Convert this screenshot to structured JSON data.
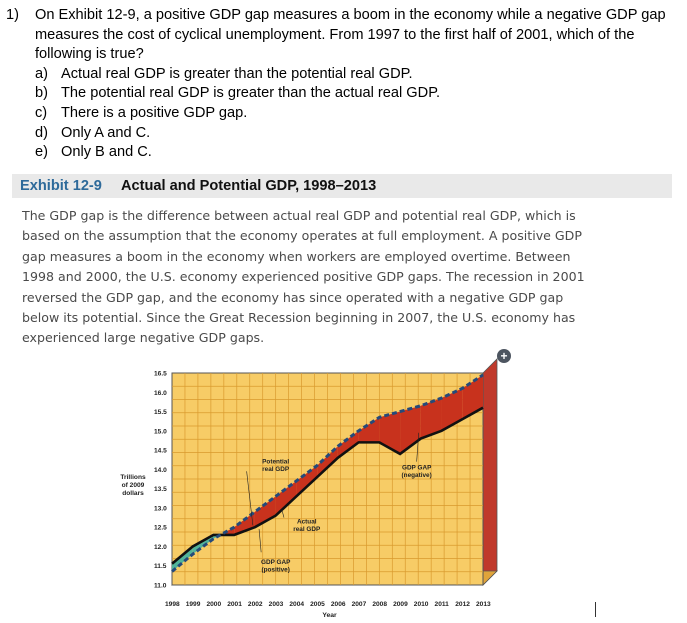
{
  "question": {
    "number": "1)",
    "text": "On Exhibit 12-9, a positive GDP gap measures a boom in the economy while a negative GDP gap measures the cost of cyclical unemployment. From 1997 to the first half of 2001, which of the following is true?",
    "options": [
      {
        "letter": "a)",
        "text": "Actual real GDP is greater than the potential real GDP."
      },
      {
        "letter": "b)",
        "text": "The potential real GDP is greater than the actual real GDP."
      },
      {
        "letter": "c)",
        "text": "There is a positive GDP gap."
      },
      {
        "letter": "d)",
        "text": "Only A and C."
      },
      {
        "letter": "e)",
        "text": "Only B and C."
      }
    ]
  },
  "exhibit": {
    "number": "Exhibit 12-9",
    "title": "Actual and Potential GDP, 1998–2013",
    "caption": "The GDP gap is the difference between actual real GDP and potential real GDP, which is based on the assumption that the economy operates at full employment. A positive GDP gap measures a boom in the economy when workers are employed overtime. Between 1998 and 2000, the U.S. economy experienced positive GDP gaps. The recession in 2001 reversed the GDP gap, and the economy has since operated with a negative GDP gap below its potential. Since the Great Recession beginning in 2007, the U.S. economy has experienced large negative GDP gaps."
  },
  "icons": {
    "expand": "plus-circle-icon"
  },
  "expand_symbol": "+",
  "colors": {
    "plot_bg": "#f7cc66",
    "grid": "#d99a2e",
    "negative_gap": "#c8321d",
    "positive_gap": "#52b49a",
    "potential_line": "#254a7a",
    "actual_line": "#111111",
    "side_face": "#c0392b"
  },
  "chart_data": {
    "type": "line",
    "xlabel": "Year",
    "ylabel_lines": [
      "Trillions",
      "of 2009",
      "dollars"
    ],
    "ylim": [
      11.0,
      16.5
    ],
    "xlim": [
      1998,
      2013
    ],
    "yticks": [
      "11.0",
      "11.5",
      "12.0",
      "12.5",
      "13.0",
      "13.5",
      "14.0",
      "14.5",
      "15.0",
      "15.5",
      "16.0",
      "16.5"
    ],
    "xticks": [
      "1998",
      "1999",
      "2000",
      "2001",
      "2002",
      "2003",
      "2004",
      "2005",
      "2006",
      "2007",
      "2008",
      "2009",
      "2010",
      "2011",
      "2012",
      "2013"
    ],
    "series": [
      {
        "name": "Potential real GDP",
        "x": [
          1998,
          1999,
          2000,
          2001,
          2002,
          2003,
          2004,
          2005,
          2006,
          2007,
          2008,
          2009,
          2010,
          2011,
          2012,
          2013
        ],
        "values": [
          11.35,
          11.8,
          12.2,
          12.5,
          12.9,
          13.3,
          13.7,
          14.1,
          14.6,
          15.0,
          15.35,
          15.5,
          15.65,
          15.85,
          16.1,
          16.45
        ]
      },
      {
        "name": "Actual real GDP",
        "x": [
          1998,
          1999,
          2000,
          2001,
          2002,
          2003,
          2004,
          2005,
          2006,
          2007,
          2008,
          2009,
          2010,
          2011,
          2012,
          2013
        ],
        "values": [
          11.55,
          12.0,
          12.3,
          12.3,
          12.5,
          12.8,
          13.3,
          13.8,
          14.3,
          14.7,
          14.7,
          14.4,
          14.8,
          15.0,
          15.3,
          15.6
        ]
      }
    ],
    "annotations": [
      {
        "text": [
          "Potential",
          "real GDP"
        ],
        "x": 2003,
        "y": 14.15
      },
      {
        "text": [
          "Actual",
          "real GDP"
        ],
        "x": 2004.5,
        "y": 12.6
      },
      {
        "text": [
          "GDP GAP",
          "(positive)"
        ],
        "x": 2003,
        "y": 11.55
      },
      {
        "text": [
          "GDP GAP",
          "(negative)"
        ],
        "x": 2009.8,
        "y": 14.0
      }
    ]
  }
}
